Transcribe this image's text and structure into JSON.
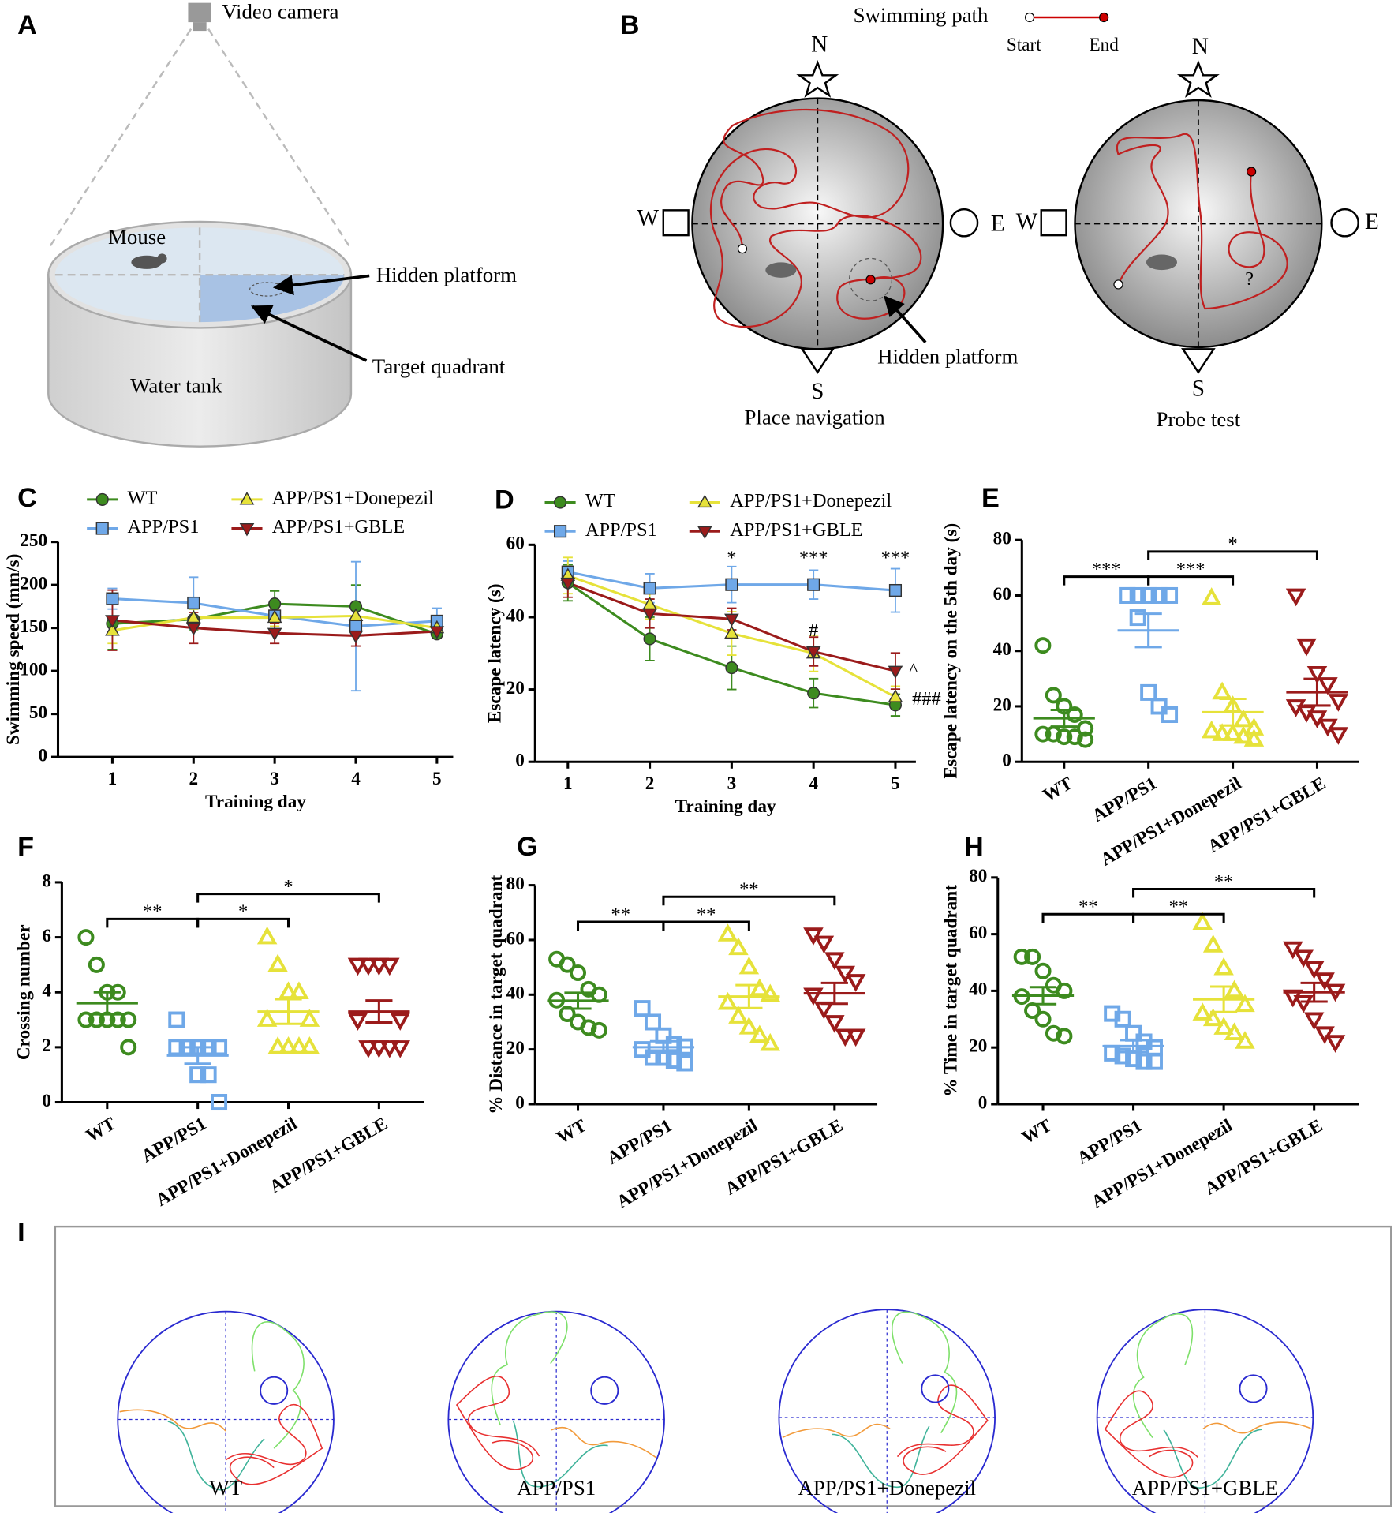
{
  "panel_a": {
    "panel": "A",
    "camera": "Video camera",
    "mouse": "Mouse",
    "platform": "Hidden platform",
    "quadrant": "Target quadrant",
    "tank": "Water tank"
  },
  "panel_b": {
    "panel": "B",
    "legend": "Swimming path",
    "start": "Start",
    "end": "End",
    "north": "N",
    "south": "S",
    "west": "W",
    "east": "E",
    "platform": "Hidden platform",
    "question": "?",
    "left_caption": "Place navigation",
    "right_caption": "Probe test"
  },
  "panel_i": {
    "panel": "I",
    "captions": [
      "WT",
      "APP/PS1",
      "APP/PS1+Donepezil",
      "APP/PS1+GBLE"
    ]
  },
  "chart_data": [
    {
      "panel": "C",
      "type": "line",
      "xlabel": "Training day",
      "ylabel": "Swimming speed (mm/s)",
      "x": [
        1,
        2,
        3,
        4,
        5
      ],
      "xlim": [
        0.33,
        5.2
      ],
      "xticks": [
        1,
        2,
        3,
        4,
        5
      ],
      "ylim": [
        0,
        250
      ],
      "yticks": [
        0,
        50,
        100,
        150,
        200,
        250
      ],
      "series": [
        {
          "name": "WT",
          "color": "#3d8b1f",
          "marker": "circle",
          "values": [
            155,
            160,
            178,
            175,
            143
          ],
          "errors": [
            30,
            12,
            15,
            25,
            5
          ]
        },
        {
          "name": "APP/PS1",
          "color": "#6fa8e8",
          "marker": "square",
          "values": [
            184,
            179,
            164,
            152,
            158
          ],
          "errors": [
            12,
            30,
            15,
            75,
            15
          ]
        },
        {
          "name": "APP/PS1+Donepezil",
          "color": "#e6e23a",
          "marker": "triangle-up",
          "values": [
            147,
            162,
            162,
            164,
            150
          ],
          "errors": [
            15,
            10,
            10,
            10,
            5
          ]
        },
        {
          "name": "APP/PS1+GBLE",
          "color": "#9b1b1b",
          "marker": "triangle-down",
          "values": [
            159,
            150,
            144,
            141,
            146
          ],
          "errors": [
            35,
            18,
            12,
            12,
            5
          ]
        }
      ]
    },
    {
      "panel": "D",
      "type": "line",
      "xlabel": "Training day",
      "ylabel": "Escape latency (s)",
      "x": [
        1,
        2,
        3,
        4,
        5
      ],
      "xlim": [
        0.6,
        5.25
      ],
      "xticks": [
        1,
        2,
        3,
        4,
        5
      ],
      "ylim": [
        0,
        60
      ],
      "yticks": [
        0,
        20,
        40,
        60
      ],
      "series": [
        {
          "name": "WT",
          "color": "#3d8b1f",
          "marker": "circle",
          "values": [
            49.5,
            34,
            26,
            19,
            15.7
          ],
          "errors": [
            5,
            6,
            6,
            4,
            3
          ]
        },
        {
          "name": "APP/PS1",
          "color": "#6fa8e8",
          "marker": "square",
          "values": [
            52.5,
            48,
            49,
            49,
            47.4
          ],
          "errors": [
            3,
            4,
            5,
            4,
            6
          ]
        },
        {
          "name": "APP/PS1+Donepezil",
          "color": "#e6e23a",
          "marker": "triangle-up",
          "values": [
            51.5,
            43.5,
            35.5,
            30,
            17.9
          ],
          "errors": [
            5,
            4,
            6,
            5,
            3
          ]
        },
        {
          "name": "APP/PS1+GBLE",
          "color": "#9b1b1b",
          "marker": "triangle-down",
          "values": [
            49.5,
            41,
            39.5,
            30.5,
            25.1
          ],
          "errors": [
            4,
            4,
            3,
            4,
            5
          ]
        }
      ],
      "annotations": [
        {
          "text": "*",
          "x": 3,
          "y": 56
        },
        {
          "text": "***",
          "x": 4,
          "y": 56
        },
        {
          "text": "***",
          "x": 5,
          "y": 56
        },
        {
          "text": "#",
          "x": 4,
          "y": 36
        },
        {
          "text": "^",
          "x": 5.22,
          "y": 25
        },
        {
          "text": "###",
          "x": 5.38,
          "y": 17
        }
      ]
    },
    {
      "panel": "E",
      "type": "dot",
      "ylabel": "Escape latency on the 5th day (s)",
      "categories": [
        "WT",
        "APP/PS1",
        "APP/PS1+Donepezil",
        "APP/PS1+GBLE"
      ],
      "colors": [
        "#3d8b1f",
        "#6fa8e8",
        "#e6e23a",
        "#9b1b1b"
      ],
      "markers": [
        "circle",
        "square",
        "triangle-up",
        "triangle-down"
      ],
      "ylim": [
        0,
        80
      ],
      "yticks": [
        0,
        20,
        40,
        60,
        80
      ],
      "points": [
        [
          42,
          24,
          20,
          17,
          12,
          10,
          10,
          9,
          9,
          8
        ],
        [
          60,
          60,
          60,
          60,
          60,
          60,
          52,
          25,
          20,
          17
        ],
        [
          59,
          25,
          20,
          15,
          12,
          11,
          10,
          10,
          9,
          8
        ],
        [
          60,
          42,
          32,
          28,
          22,
          20,
          18,
          16,
          13,
          10
        ]
      ],
      "means": [
        15.7,
        47.4,
        17.9,
        25.1
      ],
      "sems": [
        3,
        6,
        4.8,
        4.8
      ],
      "comparisons": [
        {
          "groups": [
            0,
            1
          ],
          "label": "***"
        },
        {
          "groups": [
            1,
            2
          ],
          "label": "***"
        },
        {
          "groups": [
            1,
            3
          ],
          "label": "*"
        }
      ]
    },
    {
      "panel": "F",
      "type": "dot",
      "ylabel": "Crossing number",
      "categories": [
        "WT",
        "APP/PS1",
        "APP/PS1+Donepezil",
        "APP/PS1+GBLE"
      ],
      "colors": [
        "#3d8b1f",
        "#6fa8e8",
        "#e6e23a",
        "#9b1b1b"
      ],
      "markers": [
        "circle",
        "square",
        "triangle-up",
        "triangle-down"
      ],
      "ylim": [
        0,
        8
      ],
      "yticks": [
        0,
        2,
        4,
        6,
        8
      ],
      "points": [
        [
          6,
          5,
          4,
          4,
          3,
          3,
          3,
          3,
          3,
          2
        ],
        [
          3,
          2,
          2,
          2,
          2,
          2,
          2,
          1,
          1,
          0
        ],
        [
          6,
          5,
          4,
          4,
          3,
          3,
          2,
          2,
          2,
          2
        ],
        [
          5,
          5,
          5,
          5,
          3,
          3,
          2,
          2,
          2,
          2
        ]
      ],
      "means": [
        3.6,
        1.7,
        3.3,
        3.3
      ],
      "sems": [
        0.4,
        0.3,
        0.45,
        0.4
      ],
      "comparisons": [
        {
          "groups": [
            0,
            1
          ],
          "label": "**"
        },
        {
          "groups": [
            1,
            2
          ],
          "label": "*"
        },
        {
          "groups": [
            1,
            3
          ],
          "label": "*"
        }
      ]
    },
    {
      "panel": "G",
      "type": "dot",
      "ylabel": "% Distance in target quadrant",
      "categories": [
        "WT",
        "APP/PS1",
        "APP/PS1+Donepezil",
        "APP/PS1+GBLE"
      ],
      "colors": [
        "#3d8b1f",
        "#6fa8e8",
        "#e6e23a",
        "#9b1b1b"
      ],
      "markers": [
        "circle",
        "square",
        "triangle-up",
        "triangle-down"
      ],
      "ylim": [
        0,
        80
      ],
      "yticks": [
        0,
        20,
        40,
        60,
        80
      ],
      "points": [
        [
          53,
          51,
          48,
          42,
          40,
          38,
          33,
          30,
          28,
          27
        ],
        [
          35,
          30,
          25,
          22,
          21,
          20,
          17,
          17,
          16,
          15
        ],
        [
          62,
          57,
          50,
          42,
          40,
          37,
          32,
          28,
          25,
          22
        ],
        [
          62,
          59,
          53,
          48,
          45,
          40,
          35,
          30,
          25,
          25
        ]
      ],
      "means": [
        37.8,
        20.8,
        39.3,
        40.5
      ],
      "sems": [
        2.9,
        2.2,
        4.2,
        3.8
      ],
      "comparisons": [
        {
          "groups": [
            0,
            1
          ],
          "label": "**"
        },
        {
          "groups": [
            1,
            2
          ],
          "label": "**"
        },
        {
          "groups": [
            1,
            3
          ],
          "label": "**"
        }
      ]
    },
    {
      "panel": "H",
      "type": "dot",
      "ylabel": "% Time in target quadrant",
      "categories": [
        "WT",
        "APP/PS1",
        "APP/PS1+Donepezil",
        "APP/PS1+GBLE"
      ],
      "colors": [
        "#3d8b1f",
        "#6fa8e8",
        "#e6e23a",
        "#9b1b1b"
      ],
      "markers": [
        "circle",
        "square",
        "triangle-up",
        "triangle-down"
      ],
      "ylim": [
        0,
        80
      ],
      "yticks": [
        0,
        20,
        40,
        60,
        80
      ],
      "points": [
        [
          52,
          52,
          47,
          42,
          40,
          38,
          33,
          30,
          25,
          24
        ],
        [
          32,
          30,
          25,
          22,
          20,
          18,
          17,
          16,
          15,
          15
        ],
        [
          64,
          56,
          48,
          40,
          35,
          32,
          30,
          27,
          25,
          22
        ],
        [
          55,
          52,
          48,
          44,
          40,
          38,
          36,
          30,
          25,
          22
        ]
      ],
      "means": [
        38.3,
        20.5,
        37,
        39.5
      ],
      "sems": [
        3,
        2.1,
        4.5,
        3.3
      ],
      "comparisons": [
        {
          "groups": [
            0,
            1
          ],
          "label": "**"
        },
        {
          "groups": [
            1,
            2
          ],
          "label": "**"
        },
        {
          "groups": [
            1,
            3
          ],
          "label": "**"
        }
      ]
    }
  ]
}
